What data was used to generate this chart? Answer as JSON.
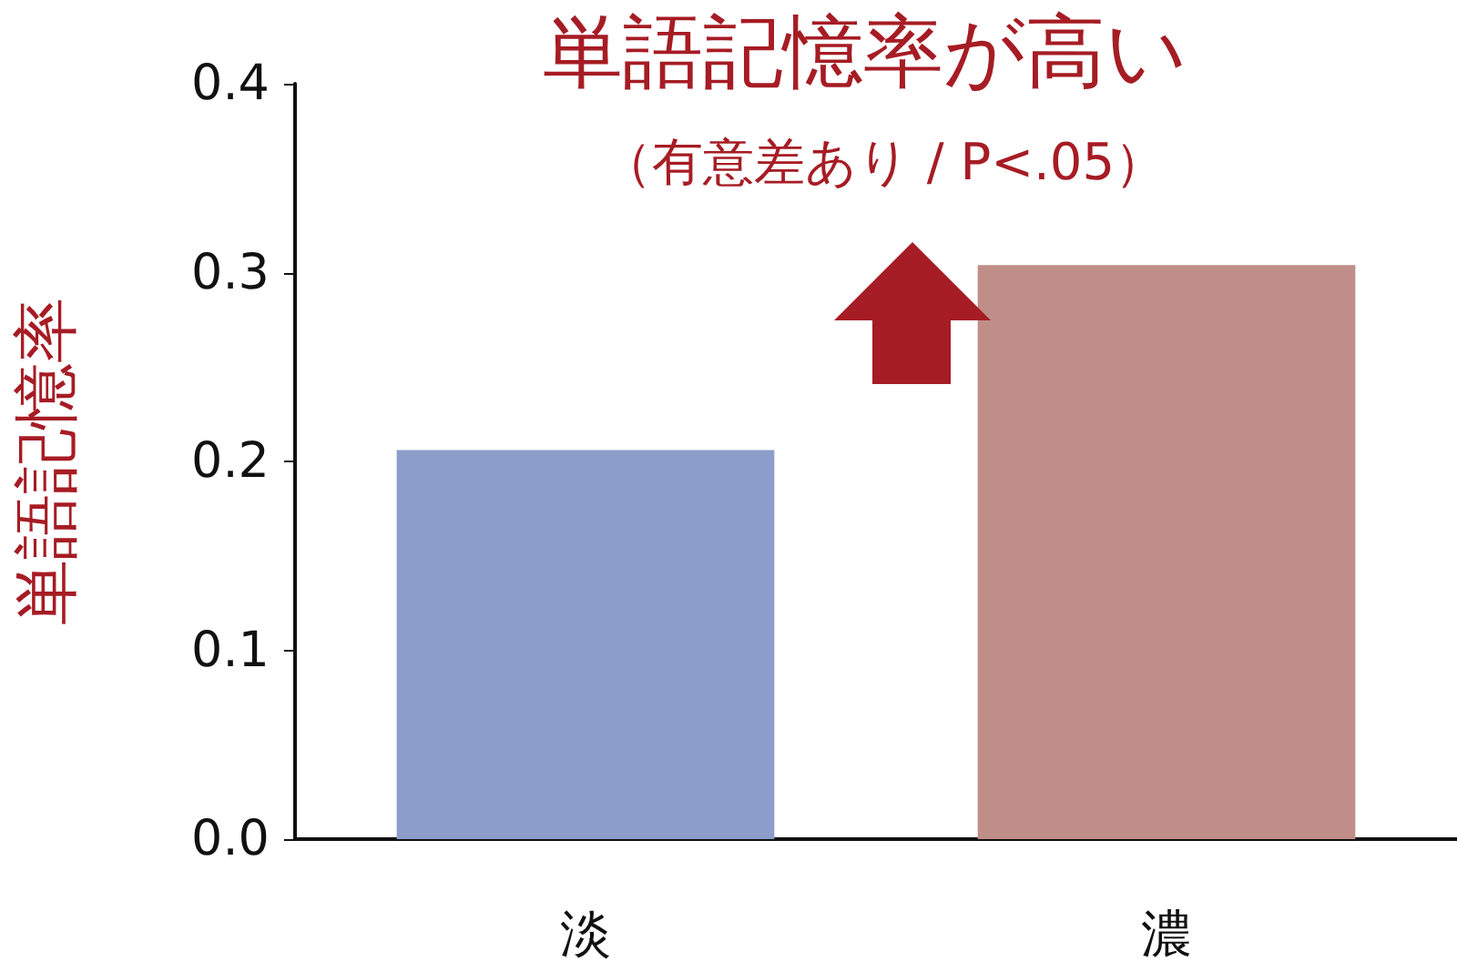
{
  "chart_data": {
    "type": "bar",
    "title": "単語記憶率が高い",
    "subtitle": "（有意差あり / P<.05）",
    "ylabel": "単語記憶率",
    "categories": [
      "淡",
      "濃"
    ],
    "values": [
      0.206,
      0.304
    ],
    "colors": [
      "#8b9dc8",
      "#c08e89"
    ],
    "ylim": [
      0,
      0.4
    ],
    "yticks": [
      {
        "value": 0,
        "label": "0.0"
      },
      {
        "value": 0.1,
        "label": "0.1"
      },
      {
        "value": 0.2,
        "label": "0.2"
      },
      {
        "value": 0.3,
        "label": "0.3"
      },
      {
        "value": 0.4,
        "label": "0.4"
      }
    ],
    "grid": false
  }
}
